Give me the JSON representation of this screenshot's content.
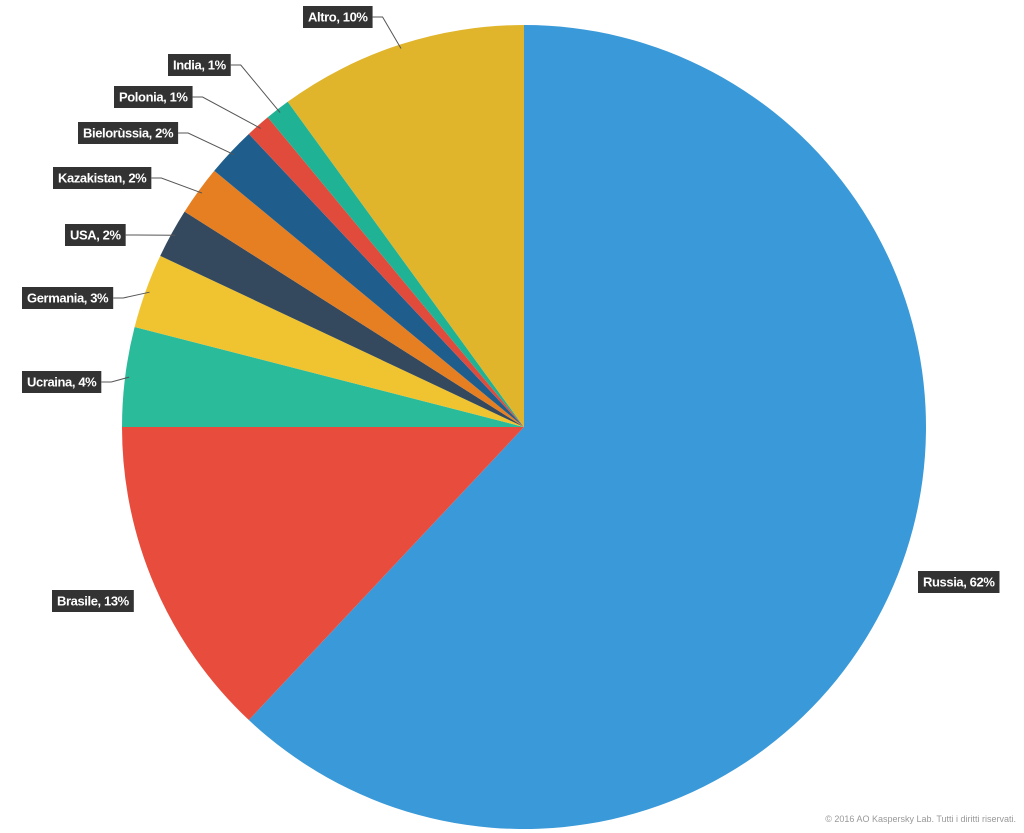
{
  "chart_data": {
    "type": "pie",
    "value_labels": [
      "Russia, 62%",
      "Brasile, 13%",
      "Ucraina, 4%",
      "Germania, 3%",
      "USA, 2%",
      "Kazakistan, 2%",
      "Bielorùssia, 2%",
      "Polonia, 1%",
      "India, 1%",
      "Altro, 10%"
    ],
    "values": [
      62,
      13,
      4,
      3,
      2,
      2,
      2,
      1,
      1,
      10
    ],
    "colors": [
      "#3a99d8",
      "#e74c3c",
      "#2abb9b",
      "#f0c330",
      "#34495e",
      "#e67e22",
      "#1f5e8c",
      "#e04b3b",
      "#1fb294",
      "#e0b52c"
    ],
    "footer": "© 2016 AO Kaspersky Lab. Tutti i diritti riservati."
  }
}
